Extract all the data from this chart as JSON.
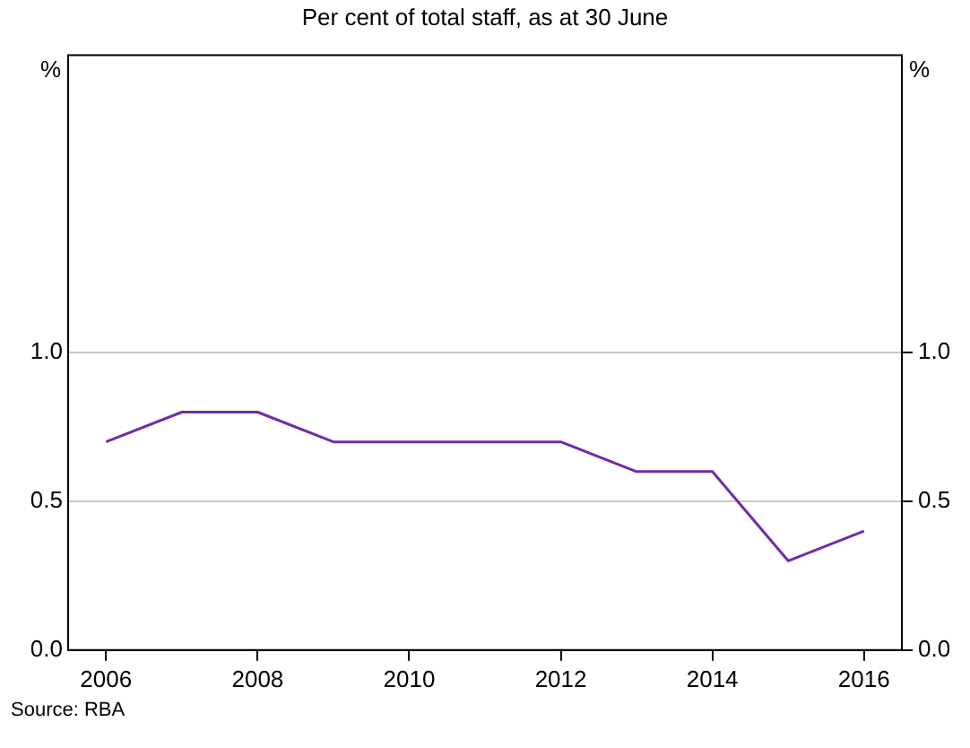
{
  "chart_data": {
    "type": "line",
    "title": "Per cent of total staff, as at 30 June",
    "ylabel": "%",
    "y2label": "%",
    "x": [
      2006,
      2007,
      2008,
      2009,
      2010,
      2011,
      2012,
      2013,
      2014,
      2015,
      2016
    ],
    "series": [
      {
        "color": "#6f2da8",
        "values": [
          0.7,
          0.8,
          0.8,
          0.7,
          0.7,
          0.7,
          0.7,
          0.6,
          0.6,
          0.3,
          0.4
        ]
      }
    ],
    "xlim": [
      2005.5,
      2016.5
    ],
    "xticks": [
      2006,
      2008,
      2010,
      2012,
      2014,
      2016
    ],
    "ylim": [
      0,
      2
    ],
    "yticks": [
      {
        "value": 0,
        "label": "0.0"
      },
      {
        "value": 0.5,
        "label": "0.5"
      },
      {
        "value": 1,
        "label": "1.0"
      }
    ],
    "y2lim": [
      0,
      2
    ],
    "y2ticks": [
      {
        "value": 0,
        "label": "0.0"
      },
      {
        "value": 0.5,
        "label": "0.5"
      },
      {
        "value": 1,
        "label": "1.0"
      }
    ],
    "grid": "y",
    "legend": false,
    "marker": "none",
    "line_style": "solid",
    "annotations": [
      "Source:    RBA"
    ]
  }
}
